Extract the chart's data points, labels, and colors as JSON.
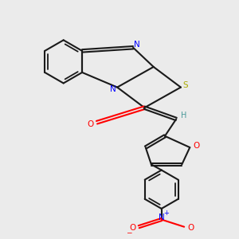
{
  "bg_color": "#ebebeb",
  "bond_color": "#1a1a1a",
  "N_color": "#0000ff",
  "S_color": "#aaaa00",
  "O_color": "#ff0000",
  "H_color": "#4a9a9a",
  "fig_width": 3.0,
  "fig_height": 3.0,
  "dpi": 100,
  "xlim": [
    0,
    10
  ],
  "ylim": [
    0,
    10
  ]
}
